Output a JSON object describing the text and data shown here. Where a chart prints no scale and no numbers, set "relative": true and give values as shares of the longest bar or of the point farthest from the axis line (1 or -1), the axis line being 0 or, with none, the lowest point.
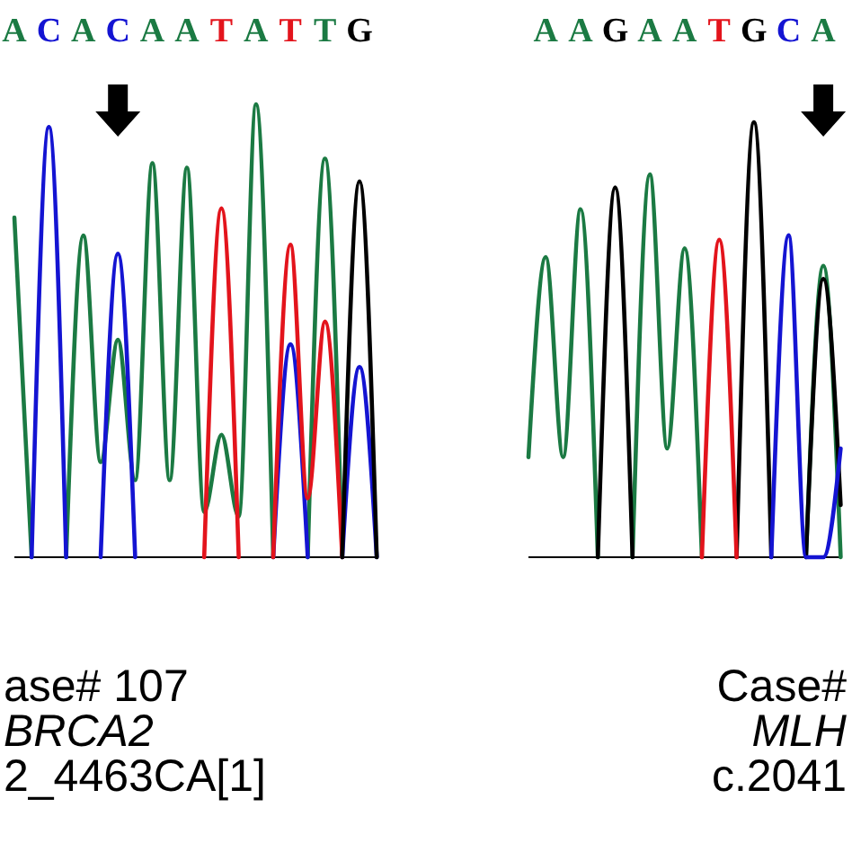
{
  "chart_data": [
    {
      "type": "line",
      "relative": true,
      "categories": [
        "A",
        null,
        "C",
        null,
        "A",
        null,
        "C",
        null,
        "A",
        null,
        "A",
        null,
        "T",
        null,
        "A",
        null,
        "T",
        null,
        "T",
        null,
        "G",
        null
      ],
      "series": [
        {
          "color": "#1b7a43",
          "values": [
            0.75,
            0,
            null,
            0,
            0.71,
            0.21,
            0.48,
            0.17,
            0.87,
            0.17,
            0.86,
            0.1,
            0.27,
            0.09,
            1.0,
            0,
            null,
            0,
            0.88,
            0,
            null,
            null
          ]
        },
        {
          "color": "#1414d2",
          "values": [
            null,
            0,
            0.95,
            0,
            null,
            0,
            0.67,
            0,
            null,
            null,
            null,
            null,
            null,
            null,
            null,
            0,
            0.47,
            0,
            null,
            0,
            0.42,
            0
          ]
        },
        {
          "color": "#e3141c",
          "values": [
            null,
            null,
            null,
            null,
            null,
            null,
            null,
            null,
            null,
            null,
            null,
            0,
            0.77,
            0,
            null,
            0,
            0.69,
            0.13,
            0.52,
            0,
            null,
            null
          ]
        },
        {
          "color": "#000000",
          "values": [
            null,
            null,
            null,
            null,
            null,
            null,
            null,
            null,
            null,
            null,
            null,
            null,
            null,
            null,
            null,
            null,
            null,
            null,
            null,
            0,
            0.83,
            0
          ]
        }
      ],
      "annotations": [
        "ase# 107",
        "BRCA2",
        "2_4463CA[1]"
      ]
    },
    {
      "type": "line",
      "relative": true,
      "categories": [
        null,
        "A",
        null,
        "A",
        null,
        "G",
        null,
        "A",
        null,
        "A",
        null,
        "T",
        null,
        "G",
        null,
        "C",
        null,
        "A",
        null
      ],
      "series": [
        {
          "color": "#1b7a43",
          "values": [
            0.23,
            0.69,
            0.23,
            0.8,
            0,
            null,
            0,
            0.88,
            0.25,
            0.71,
            0,
            null,
            null,
            null,
            null,
            null,
            0,
            0.67,
            0
          ]
        },
        {
          "color": "#000000",
          "values": [
            null,
            null,
            null,
            null,
            0,
            0.85,
            0,
            null,
            null,
            null,
            null,
            null,
            0,
            1.0,
            0,
            null,
            0,
            0.64,
            0.12
          ]
        },
        {
          "color": "#e3141c",
          "values": [
            null,
            null,
            null,
            null,
            null,
            null,
            null,
            null,
            null,
            null,
            0,
            0.73,
            0,
            null,
            null,
            null,
            null,
            null,
            null
          ]
        },
        {
          "color": "#1414d2",
          "values": [
            null,
            null,
            null,
            null,
            null,
            null,
            null,
            null,
            null,
            null,
            null,
            null,
            null,
            null,
            0,
            0.74,
            0,
            0,
            0.25
          ]
        }
      ],
      "annotations": [
        "Case#",
        "MLH",
        "c.2041"
      ]
    }
  ]
}
